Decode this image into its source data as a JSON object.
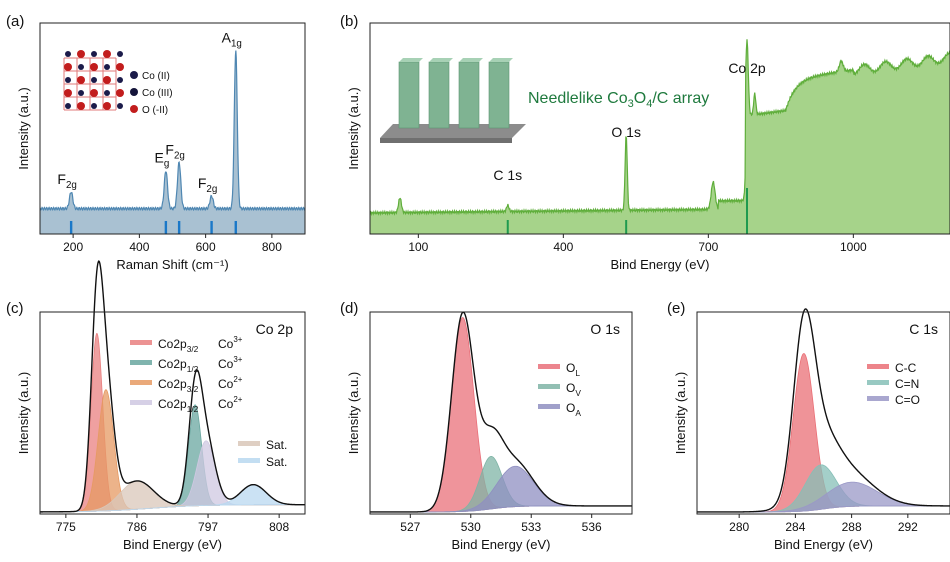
{
  "figure_title": "",
  "colors": {
    "raman_fill": "#a9c1d2",
    "raman_line": "#4f87b2",
    "raman_marker": "#1a78c8",
    "survey_fill": "#a6d38a",
    "survey_line": "#5fae3b",
    "survey_marker": "#1f9a4f",
    "co3_p32": "#e98080",
    "co3_p12": "#6aa7a0",
    "co2_p32": "#e69a63",
    "co2_p12": "#cfc8e2",
    "sat1": "#d9c7b9",
    "sat2": "#b9d8f0",
    "ol": "#e9707a",
    "ov": "#7fb4a6",
    "oa": "#8f8fc1",
    "cc": "#ea6f76",
    "cn": "#86bfb7",
    "co": "#9a98c7"
  },
  "chart_data": [
    {
      "id": "a",
      "panel_label": "(a)",
      "type": "line",
      "xlabel": "Raman Shift (cm⁻¹)",
      "ylabel": "Intensity (a.u.)",
      "xlim": [
        100,
        900
      ],
      "ylim": [
        0,
        1
      ],
      "xticks": [
        200,
        400,
        600,
        800
      ],
      "peaks": [
        {
          "x": 194,
          "height": 0.08,
          "label": "F",
          "sub": "2g"
        },
        {
          "x": 480,
          "height": 0.18,
          "label": "E",
          "sub": "g"
        },
        {
          "x": 520,
          "height": 0.22,
          "label": "F",
          "sub": "2g"
        },
        {
          "x": 618,
          "height": 0.06,
          "label": "F",
          "sub": "2g"
        },
        {
          "x": 691,
          "height": 0.75,
          "label": "A",
          "sub": "1g"
        }
      ],
      "baseline": 0.12,
      "legend": [
        "Co (II)",
        "Co (III)",
        "O (-II)"
      ]
    },
    {
      "id": "b",
      "panel_label": "(b)",
      "type": "area",
      "xlabel": "Bind Energy (eV)",
      "ylabel": "Intensity (a.u.)",
      "xlim": [
        0,
        1200
      ],
      "ylim": [
        0,
        1
      ],
      "xticks": [
        100,
        400,
        700,
        1000
      ],
      "inset_caption": "Needlelike Co",
      "inset_caption_sub1": "3",
      "inset_caption_mid": "O",
      "inset_caption_sub2": "4",
      "inset_caption_end": "/C array",
      "peak_labels": [
        {
          "text": "C 1s",
          "x": 285
        },
        {
          "text": "O 1s",
          "x": 530
        },
        {
          "text": "Co 2p",
          "x": 780
        }
      ],
      "marker_x": [
        285,
        530,
        780
      ]
    },
    {
      "id": "c",
      "panel_label": "(c)",
      "type": "line",
      "title": "Co 2p",
      "xlabel": "Bind Energy (eV)",
      "ylabel": "Intensity (a.u.)",
      "xlim": [
        771,
        812
      ],
      "ylim": [
        0,
        1
      ],
      "xticks": [
        775,
        786,
        797,
        808
      ],
      "components": [
        {
          "name": "Co2p",
          "sub": "3/2",
          "ion": "Co",
          "sup": "3+",
          "center": 779.8,
          "width": 0.9,
          "amp": 0.88
        },
        {
          "name": "Co2p",
          "sub": "1/2",
          "ion": "Co",
          "sup": "3+",
          "center": 795.0,
          "width": 1.0,
          "amp": 0.5
        },
        {
          "name": "Co2p",
          "sub": "3/2",
          "ion": "Co",
          "sup": "2+",
          "center": 781.2,
          "width": 1.2,
          "amp": 0.6
        },
        {
          "name": "Co2p",
          "sub": "1/2",
          "ion": "Co",
          "sup": "2+",
          "center": 796.7,
          "width": 1.4,
          "amp": 0.32
        }
      ],
      "satellites": [
        {
          "name": "Sat.",
          "center": 786.0,
          "width": 2.6,
          "amp": 0.14
        },
        {
          "name": "Sat.",
          "center": 804.0,
          "width": 2.0,
          "amp": 0.1
        }
      ]
    },
    {
      "id": "d",
      "panel_label": "(d)",
      "type": "line",
      "title": "O 1s",
      "xlabel": "Bind Energy (eV)",
      "ylabel": "Intensity (a.u.)",
      "xlim": [
        525,
        538
      ],
      "ylim": [
        0,
        1
      ],
      "xticks": [
        527,
        530,
        533,
        536
      ],
      "components": [
        {
          "name": "O",
          "sub": "L",
          "center": 529.6,
          "width": 0.55,
          "amp": 0.96
        },
        {
          "name": "O",
          "sub": "V",
          "center": 531.0,
          "width": 0.55,
          "amp": 0.26
        },
        {
          "name": "O",
          "sub": "A",
          "center": 532.2,
          "width": 0.9,
          "amp": 0.2
        }
      ]
    },
    {
      "id": "e",
      "panel_label": "(e)",
      "type": "line",
      "title": "C 1s",
      "xlabel": "Bind Energy (eV)",
      "ylabel": "Intensity (a.u.)",
      "xlim": [
        277,
        295
      ],
      "ylim": [
        0,
        1
      ],
      "xticks": [
        280,
        284,
        288,
        292
      ],
      "components": [
        {
          "name": "C-C",
          "center": 284.6,
          "width": 0.75,
          "amp": 0.78
        },
        {
          "name": "C=N",
          "center": 285.8,
          "width": 1.1,
          "amp": 0.22
        },
        {
          "name": "C=O",
          "center": 288.0,
          "width": 1.8,
          "amp": 0.12
        }
      ]
    }
  ]
}
